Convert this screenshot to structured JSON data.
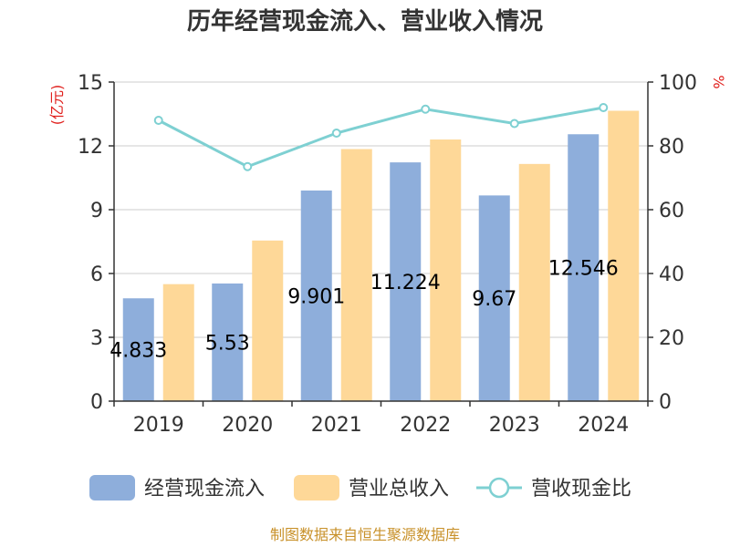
{
  "chart_data": {
    "type": "bar",
    "title": "历年经营现金流入、营业收入情况",
    "left_unit": "(亿元)",
    "right_unit": "%",
    "categories": [
      "2019",
      "2020",
      "2021",
      "2022",
      "2023",
      "2024"
    ],
    "left_ylim": [
      0,
      15
    ],
    "left_ticks": [
      0,
      3,
      6,
      9,
      12,
      15
    ],
    "right_ylim": [
      0,
      100
    ],
    "right_ticks": [
      0,
      20,
      40,
      60,
      80,
      100
    ],
    "grid": true,
    "legend_position": "bottom",
    "series": [
      {
        "name": "经营现金流入",
        "type": "bar",
        "axis": "left",
        "color": "#8eaedb",
        "values": [
          4.833,
          5.53,
          9.901,
          11.224,
          9.67,
          12.546
        ]
      },
      {
        "name": "营业总收入",
        "type": "bar",
        "axis": "left",
        "color": "#fed898",
        "values": [
          5.5,
          7.55,
          11.85,
          12.3,
          11.15,
          13.65
        ]
      },
      {
        "name": "营收现金比",
        "type": "line",
        "axis": "right",
        "color": "#7ed0d2",
        "values": [
          88,
          73.5,
          84,
          91.5,
          87,
          92
        ]
      }
    ],
    "data_labels": [
      "4.833",
      "5.53",
      "9.901",
      "11.224",
      "9.67",
      "12.546"
    ],
    "source": "制图数据来自恒生聚源数据库"
  }
}
